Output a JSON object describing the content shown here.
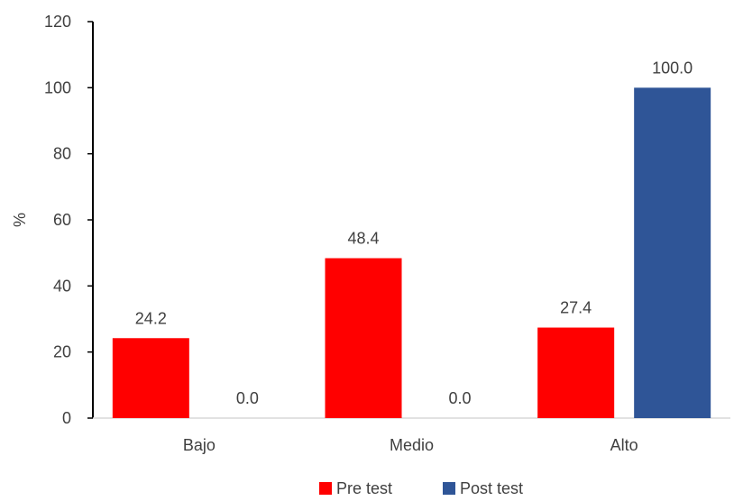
{
  "chart_data": {
    "type": "bar",
    "categories": [
      "Bajo",
      "Medio",
      "Alto"
    ],
    "series": [
      {
        "name": "Pre test",
        "values": [
          24.2,
          48.4,
          27.4
        ],
        "labels": [
          "24.2",
          "48.4",
          "27.4"
        ],
        "color": "#FF0000"
      },
      {
        "name": "Post test",
        "values": [
          0.0,
          0.0,
          100.0
        ],
        "labels": [
          "0.0",
          "0.0",
          "100.0"
        ],
        "color": "#2F5597"
      }
    ],
    "ylabel": "%",
    "xlabel": "",
    "ylim": [
      0,
      120
    ],
    "yticks": [
      "0",
      "20",
      "40",
      "60",
      "80",
      "100",
      "120"
    ],
    "grid": false,
    "legend_position": "bottom"
  }
}
